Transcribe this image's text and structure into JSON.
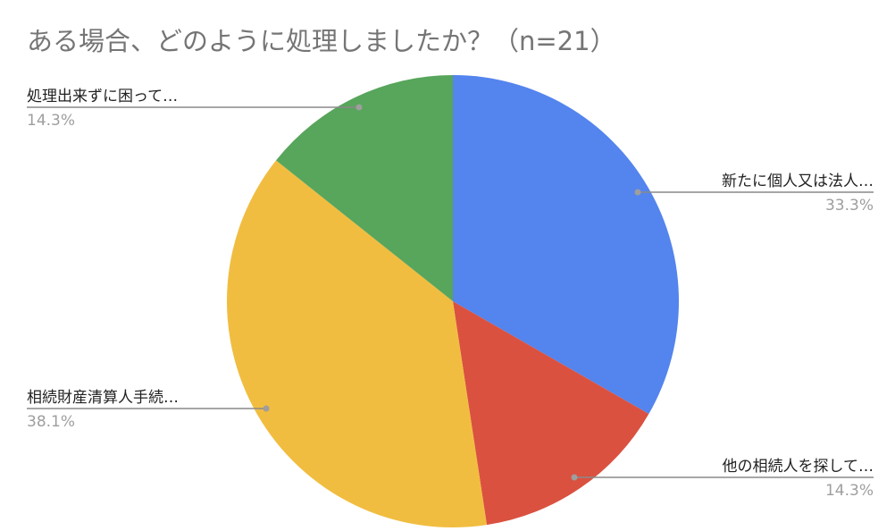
{
  "chart_data": {
    "type": "pie",
    "title": "ある場合、どのように処理しましたか？（n=21）",
    "slices": [
      {
        "label": "新たに個人又は法人…",
        "value": 33.3,
        "value_label": "33.3%",
        "color": "#5484ED"
      },
      {
        "label": "他の相続人を探して…",
        "value": 14.3,
        "value_label": "14.3%",
        "color": "#DA5140"
      },
      {
        "label": "相続財産清算人手続…",
        "value": 38.1,
        "value_label": "38.1%",
        "color": "#F1BD40"
      },
      {
        "label": "処理出来ずに困って…",
        "value": 14.3,
        "value_label": "14.3%",
        "color": "#58A55C"
      }
    ],
    "start": "top",
    "direction": "clockwise",
    "legend": "leader-line labels"
  }
}
